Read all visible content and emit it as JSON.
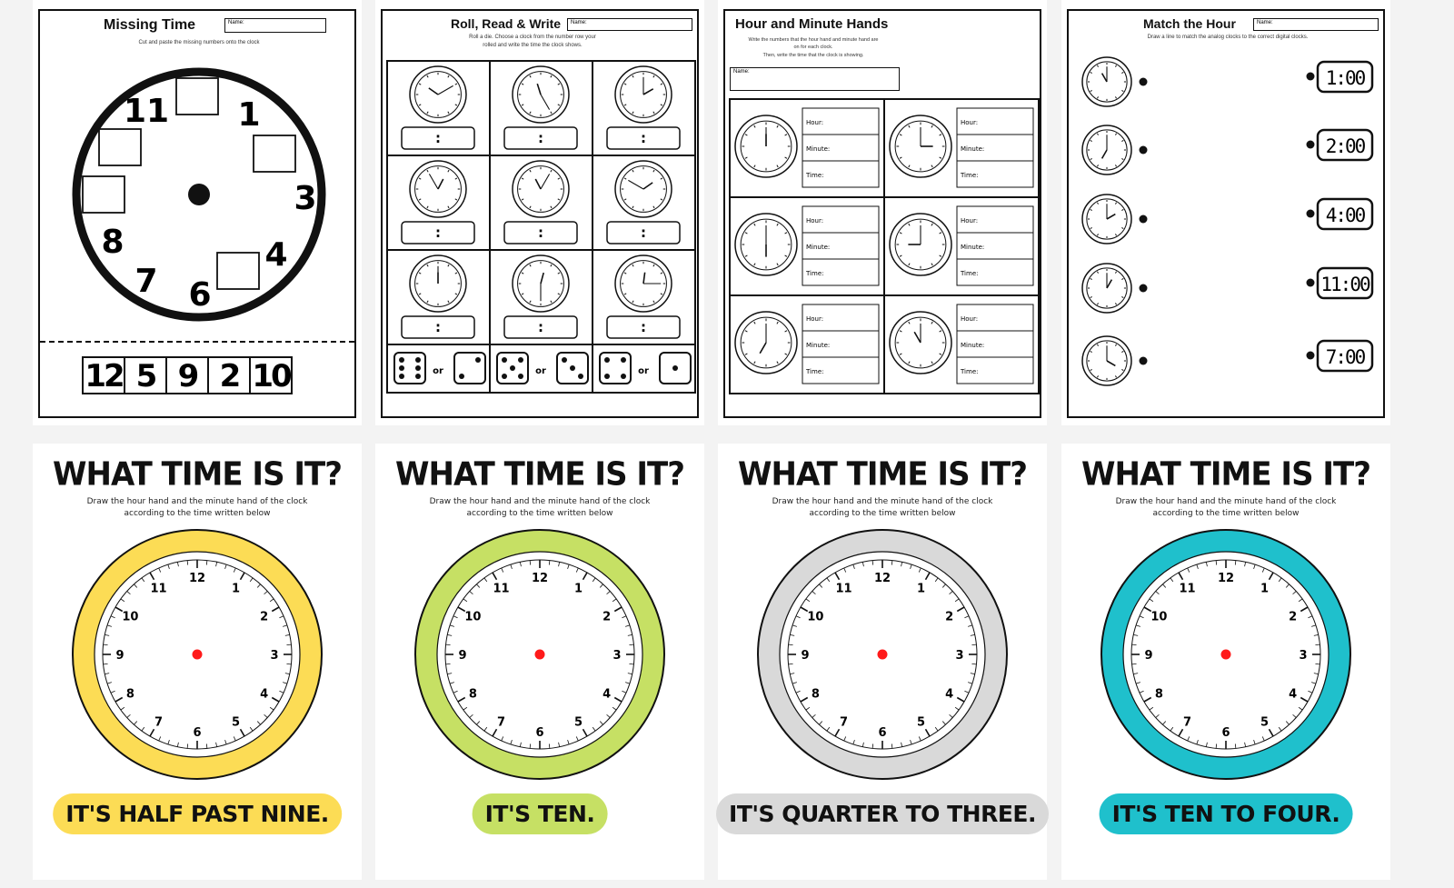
{
  "worksheets": {
    "missing_time": {
      "title": "Missing Time",
      "name_label": "Name:",
      "instruction": "Cut and paste the missing numbers onto the clock",
      "clock_numbers": [
        "11",
        "1",
        "3",
        "4",
        "6",
        "7",
        "8"
      ],
      "cutout_numbers": [
        "12",
        "5",
        "9",
        "2",
        "10"
      ]
    },
    "roll_read_write": {
      "title": "Roll, Read & Write",
      "name_label": "Name:",
      "instruction_line1": "Roll a die. Choose a clock from the number row your",
      "instruction_line2": "rolled and write the time the clock shows.",
      "time_placeholder": ":",
      "or_label": "or",
      "dice": [
        [
          6,
          2
        ],
        [
          5,
          3
        ],
        [
          4,
          1
        ]
      ]
    },
    "hour_minute_hands": {
      "title": "Hour and Minute Hands",
      "instruction_line1": "Write the numbers that the hour hand and minute hand are",
      "instruction_line2": "on for each clock.",
      "instruction_line3": "Then, write the time that the clock is showing.",
      "name_label": "Name:",
      "field_labels": [
        "Hour:",
        "Minute:",
        "Time:"
      ]
    },
    "match_the_hour": {
      "title": "Match the Hour",
      "name_label": "Name:",
      "instruction": "Draw a line to match the analog clocks to the correct digital clocks.",
      "digital_times": [
        "1:00",
        "2:00",
        "4:00",
        "11:00",
        "7:00"
      ]
    }
  },
  "what_time": [
    {
      "title": "WHAT TIME IS IT?",
      "sub1": "Draw the hour hand and the minute hand of the clock",
      "sub2": "according to the time written below",
      "answer": "IT'S HALF PAST NINE.",
      "color": "#fcdc55"
    },
    {
      "title": "WHAT TIME IS IT?",
      "sub1": "Draw the hour hand and the minute hand of the clock",
      "sub2": "according to the time written below",
      "answer": "IT'S TEN.",
      "color": "#c6e064"
    },
    {
      "title": "WHAT TIME IS IT?",
      "sub1": "Draw the hour hand and the minute hand of the clock",
      "sub2": "according to the time written below",
      "answer": "IT'S QUARTER TO THREE.",
      "color": "#d9d9d9"
    },
    {
      "title": "WHAT TIME IS IT?",
      "sub1": "Draw the hour hand and the minute hand of the clock",
      "sub2": "according to the time written below",
      "answer": "IT'S TEN TO FOUR.",
      "color": "#1fc0cc"
    }
  ],
  "clock_face_numbers": [
    "12",
    "1",
    "2",
    "3",
    "4",
    "5",
    "6",
    "7",
    "8",
    "9",
    "10",
    "11"
  ],
  "center_dot_color": "#ff1a1a"
}
